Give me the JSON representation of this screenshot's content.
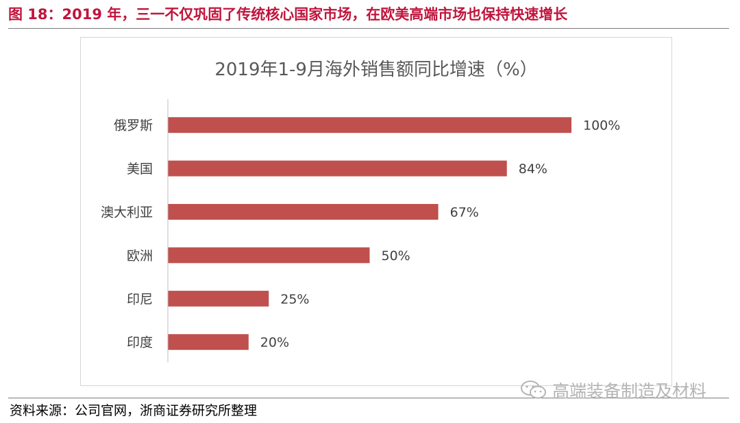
{
  "figure": {
    "title": "图 18：2019 年，三一不仅巩固了传统核心国家市场，在欧美高端市场也保持快速增长",
    "source": "资料来源：公司官网，浙商证券研究所整理",
    "watermark": "高端装备制造及材料"
  },
  "chart_data": {
    "type": "bar",
    "orientation": "horizontal",
    "title": "2019年1-9月海外销售额同比增速（%）",
    "categories": [
      "俄罗斯",
      "美国",
      "澳大利亚",
      "欧洲",
      "印尼",
      "印度"
    ],
    "values": [
      100,
      84,
      67,
      50,
      25,
      20
    ],
    "data_labels": [
      "100%",
      "84%",
      "67%",
      "50%",
      "25%",
      "20%"
    ],
    "xlim": [
      0,
      100
    ],
    "bar_color": "#c0504d",
    "grid": false,
    "legend": "none"
  },
  "colors": {
    "title": "#c0143c",
    "bar": "#c0504d",
    "axis": "#bfbfbf",
    "rule": "#7a7a7a"
  }
}
